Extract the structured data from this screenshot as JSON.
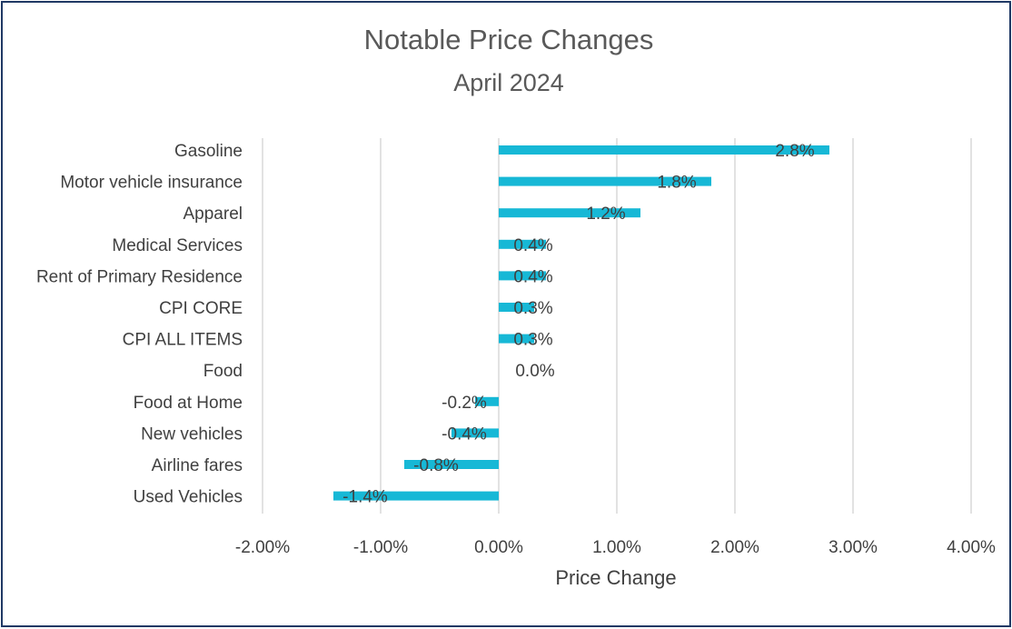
{
  "chart_data": {
    "type": "bar",
    "orientation": "horizontal",
    "title": "Notable Price Changes",
    "subtitle": "April 2024",
    "xlabel": "Price Change",
    "ylabel": "",
    "xlim": [
      -0.02,
      0.04
    ],
    "x_ticks": [
      -0.02,
      -0.01,
      0.0,
      0.01,
      0.02,
      0.03,
      0.04
    ],
    "x_tick_labels": [
      "-2.00%",
      "-1.00%",
      "0.00%",
      "1.00%",
      "2.00%",
      "3.00%",
      "4.00%"
    ],
    "grid": true,
    "legend": "none",
    "categories": [
      "Gasoline",
      "Motor vehicle insurance",
      "Apparel",
      "Medical Services",
      "Rent of Primary Residence",
      "CPI CORE",
      "CPI ALL ITEMS",
      "Food",
      "Food at Home",
      "New vehicles",
      "Airline fares",
      "Used Vehicles"
    ],
    "values": [
      0.028,
      0.018,
      0.012,
      0.004,
      0.004,
      0.003,
      0.003,
      0.0,
      -0.002,
      -0.004,
      -0.008,
      -0.014
    ],
    "data_labels": [
      "2.8%",
      "1.8%",
      "1.2%",
      "0.4%",
      "0.4%",
      "0.3%",
      "0.3%",
      "0.0%",
      "-0.2%",
      "-0.4%",
      "-0.8%",
      "-1.4%"
    ],
    "colors": {
      "bar": "#17b8d6",
      "grid": "#d9d9d9",
      "text": "#404040",
      "title": "#595959",
      "border": "#1f3864"
    }
  }
}
